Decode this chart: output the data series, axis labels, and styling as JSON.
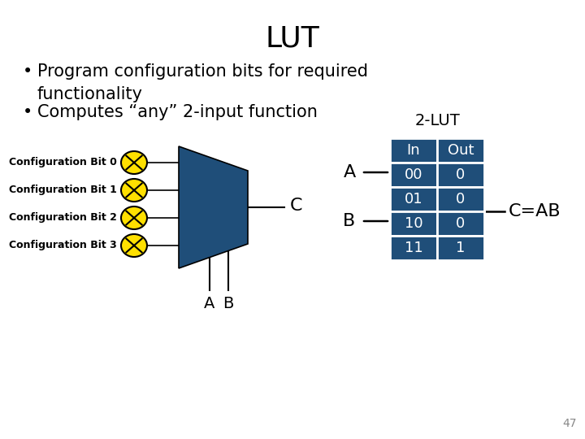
{
  "title": "LUT",
  "bullet1": "Program configuration bits for required\nfunctionality",
  "bullet2": "Computes “any” 2-input function",
  "lut_label": "2-LUT",
  "table_header": [
    "In",
    "Out"
  ],
  "table_rows": [
    [
      "00",
      "0"
    ],
    [
      "01",
      "0"
    ],
    [
      "10",
      "0"
    ],
    [
      "11",
      "1"
    ]
  ],
  "config_labels": [
    "Configuration Bit 0",
    "Configuration Bit 1",
    "Configuration Bit 2",
    "Configuration Bit 3"
  ],
  "output_label": "C",
  "bottom_labels": [
    "A",
    "B"
  ],
  "equation_label": "C=AB",
  "page_number": "47",
  "bg_color": "#ffffff",
  "blue_color": "#1F4E79",
  "table_blue": "#1F4E79",
  "yellow_color": "#FFE000",
  "text_color": "#000000",
  "white_color": "#ffffff",
  "title_fontsize": 26,
  "bullet_fontsize": 15,
  "label_fontsize": 9,
  "table_fontsize": 13
}
